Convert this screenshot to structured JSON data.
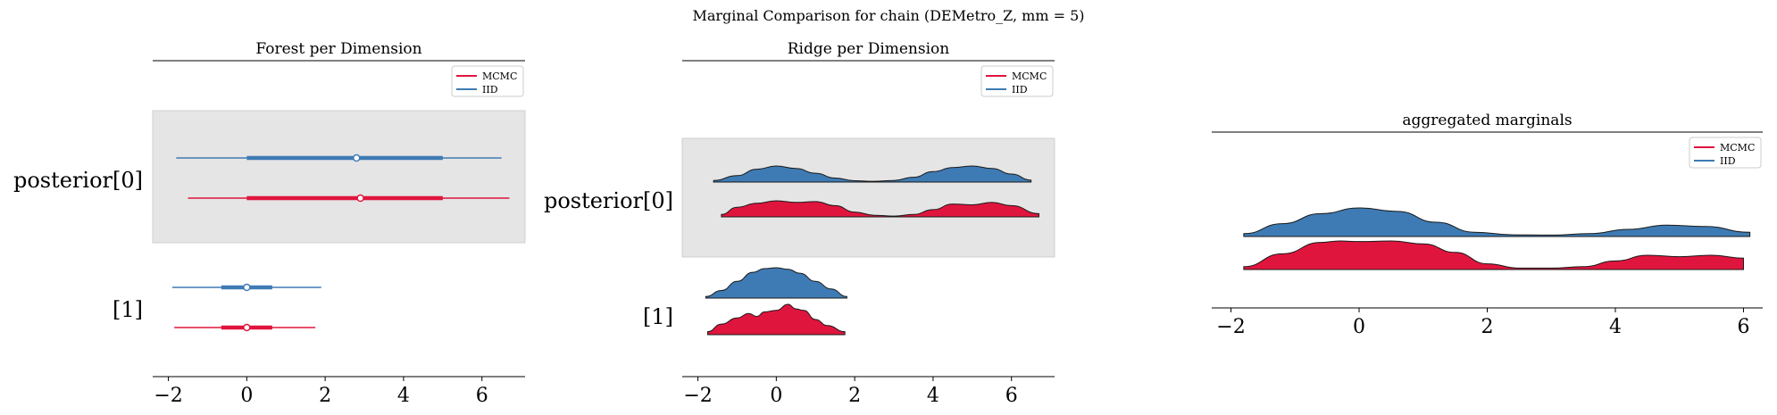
{
  "suptitle": "Marginal Comparison for chain (DEMetro_Z, mm = 5)",
  "colors": {
    "mcmc": "#e0153d",
    "iid": "#3e7bb4",
    "band": "#e5e5e5",
    "axis": "#000000"
  },
  "chart_data": [
    {
      "type": "forest",
      "title": "Forest per Dimension",
      "xlim": [
        -2.4,
        7.1
      ],
      "xticks": [
        -2,
        0,
        2,
        4,
        6
      ],
      "legend": {
        "placement": "top-right",
        "entries": [
          "MCMC",
          "IID"
        ]
      },
      "labels": [
        "posterior[0]",
        "[1]"
      ],
      "dimensions": [
        {
          "label": "posterior[0]",
          "shaded": true,
          "series": [
            {
              "name": "IID",
              "hdi_full": [
                -1.8,
                6.5
              ],
              "hdi_inner": [
                0.0,
                5.0
              ],
              "median": 2.8
            },
            {
              "name": "MCMC",
              "hdi_full": [
                -1.5,
                6.7
              ],
              "hdi_inner": [
                0.0,
                5.0
              ],
              "median": 2.9
            }
          ]
        },
        {
          "label": "[1]",
          "shaded": false,
          "series": [
            {
              "name": "IID",
              "hdi_full": [
                -1.9,
                1.9
              ],
              "hdi_inner": [
                -0.65,
                0.65
              ],
              "median": 0.0
            },
            {
              "name": "MCMC",
              "hdi_full": [
                -1.85,
                1.75
              ],
              "hdi_inner": [
                -0.65,
                0.65
              ],
              "median": 0.0
            }
          ]
        }
      ]
    },
    {
      "type": "ridge",
      "title": "Ridge per Dimension",
      "xlim": [
        -2.4,
        7.1
      ],
      "xticks": [
        -2,
        0,
        2,
        4,
        6
      ],
      "legend": {
        "placement": "top-right",
        "entries": [
          "MCMC",
          "IID"
        ]
      },
      "labels": [
        "posterior[0]",
        "[1]"
      ],
      "dimensions": [
        {
          "label": "posterior[0]",
          "shaded": true,
          "series": [
            {
              "name": "IID",
              "x": [
                -1.6,
                -1.0,
                -0.5,
                0.0,
                0.5,
                1.0,
                1.5,
                2.0,
                2.5,
                3.0,
                3.5,
                4.0,
                4.5,
                5.0,
                5.5,
                6.0,
                6.5
              ],
              "density": [
                0.1,
                0.4,
                0.8,
                1.0,
                0.85,
                0.55,
                0.25,
                0.08,
                0.05,
                0.1,
                0.3,
                0.65,
                0.9,
                1.0,
                0.85,
                0.5,
                0.12
              ]
            },
            {
              "name": "MCMC",
              "x": [
                -1.4,
                -1.0,
                -0.5,
                0.0,
                0.5,
                1.0,
                1.5,
                2.0,
                2.5,
                3.0,
                3.5,
                4.0,
                4.5,
                5.0,
                5.5,
                6.0,
                6.7
              ],
              "density": [
                0.15,
                0.6,
                0.85,
                1.0,
                0.9,
                0.95,
                0.7,
                0.3,
                0.1,
                0.05,
                0.15,
                0.45,
                0.8,
                0.75,
                0.9,
                0.7,
                0.2
              ]
            }
          ]
        },
        {
          "label": "[1]",
          "shaded": false,
          "series": [
            {
              "name": "IID",
              "x": [
                -1.8,
                -1.4,
                -1.0,
                -0.6,
                -0.3,
                0.0,
                0.3,
                0.6,
                1.0,
                1.4,
                1.8
              ],
              "density": [
                0.05,
                0.25,
                0.55,
                0.85,
                0.97,
                1.0,
                0.95,
                0.82,
                0.55,
                0.3,
                0.05
              ]
            },
            {
              "name": "MCMC",
              "x": [
                -1.75,
                -1.4,
                -1.0,
                -0.7,
                -0.5,
                -0.3,
                0.0,
                0.3,
                0.5,
                0.7,
                1.0,
                1.3,
                1.75
              ],
              "density": [
                0.1,
                0.35,
                0.55,
                0.7,
                0.6,
                0.75,
                0.8,
                1.0,
                0.85,
                0.8,
                0.5,
                0.3,
                0.1
              ]
            }
          ]
        }
      ]
    },
    {
      "type": "ridge",
      "title": "aggregated marginals",
      "xlim": [
        -2.3,
        6.3
      ],
      "xticks": [
        -2,
        0,
        2,
        4,
        6
      ],
      "legend": {
        "placement": "top-right",
        "entries": [
          "MCMC",
          "IID"
        ]
      },
      "series": [
        {
          "name": "IID",
          "x": [
            -1.8,
            -1.2,
            -0.6,
            0.0,
            0.6,
            1.2,
            1.8,
            2.4,
            3.0,
            3.6,
            4.2,
            4.8,
            5.4,
            6.1
          ],
          "density": [
            0.1,
            0.45,
            0.8,
            1.0,
            0.88,
            0.5,
            0.15,
            0.06,
            0.05,
            0.1,
            0.25,
            0.4,
            0.35,
            0.15
          ]
        },
        {
          "name": "MCMC",
          "x": [
            -1.8,
            -1.2,
            -0.6,
            -0.3,
            0.0,
            0.5,
            1.0,
            1.5,
            2.0,
            2.5,
            3.0,
            3.5,
            4.0,
            4.5,
            5.0,
            5.5,
            6.0
          ],
          "density": [
            0.1,
            0.55,
            0.95,
            1.0,
            0.98,
            1.0,
            0.9,
            0.6,
            0.2,
            0.05,
            0.05,
            0.1,
            0.3,
            0.5,
            0.45,
            0.5,
            0.4
          ]
        }
      ]
    }
  ]
}
